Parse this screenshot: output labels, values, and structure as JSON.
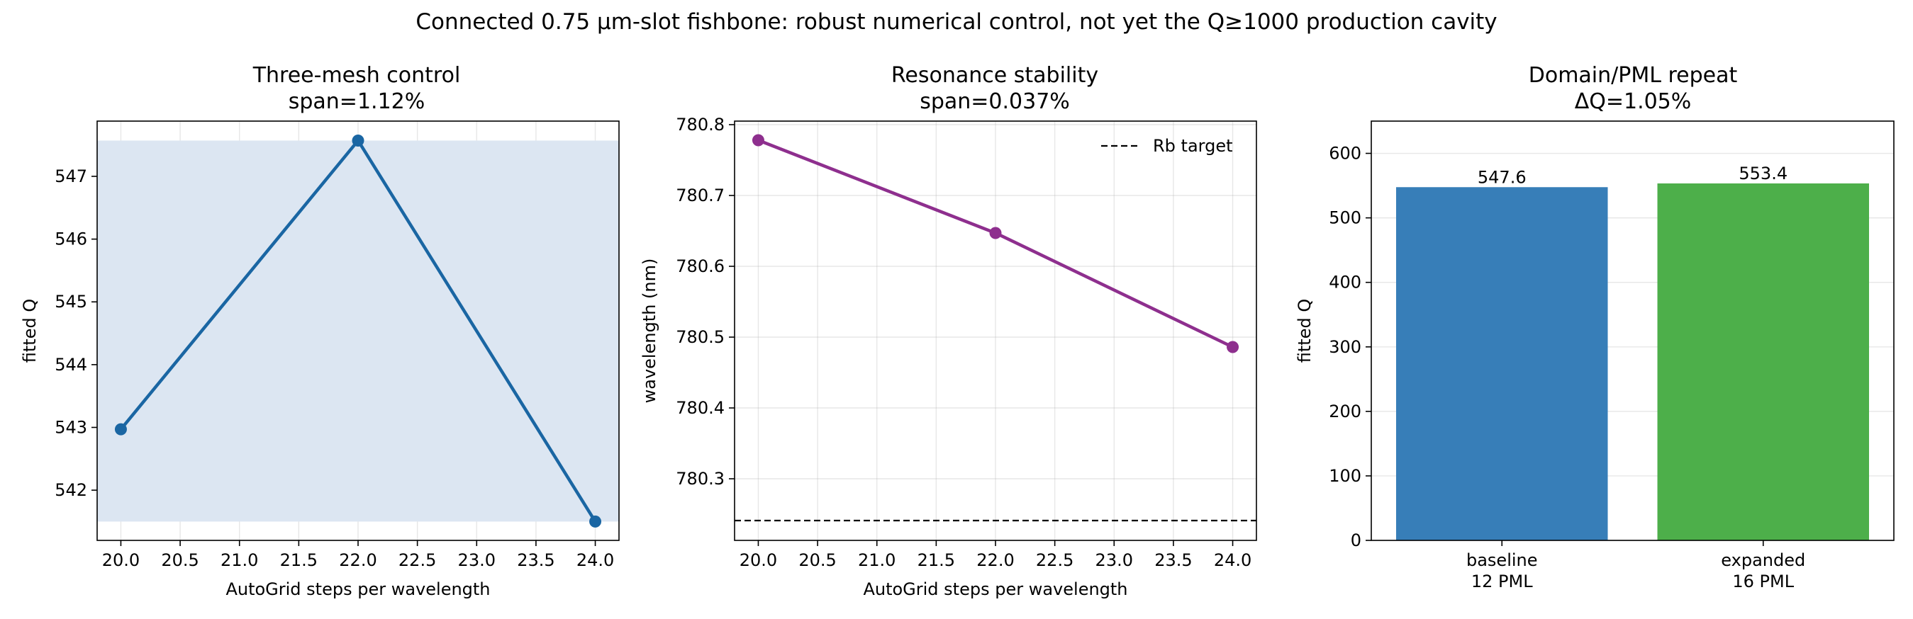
{
  "suptitle": "Connected 0.75 µm-slot fishbone: robust numerical control, not yet the Q≥1000 production cavity",
  "colors": {
    "mesh_line": "#1a66a3",
    "mesh_band": "#dce6f2",
    "resonance_line": "#8e2f8e",
    "target_line": "#000000",
    "bar_baseline": "#377eb8",
    "bar_expanded": "#4daf4a"
  },
  "chart_data": [
    {
      "type": "line",
      "title_line1": "Three-mesh control",
      "title_line2": "span=1.12%",
      "xlabel": "AutoGrid steps per wavelength",
      "ylabel": "fitted Q",
      "x": [
        20,
        22,
        24
      ],
      "y": [
        542.97,
        547.57,
        541.5
      ],
      "band": [
        541.5,
        547.57
      ],
      "xlim": [
        19.8,
        24.2
      ],
      "ylim": [
        541.2,
        547.88
      ],
      "xticks": [
        "20.0",
        "20.5",
        "21.0",
        "21.5",
        "22.0",
        "22.5",
        "23.0",
        "23.5",
        "24.0"
      ],
      "yticks": [
        "542",
        "543",
        "544",
        "545",
        "546",
        "547"
      ],
      "grid": true
    },
    {
      "type": "line",
      "title_line1": "Resonance stability",
      "title_line2": "span=0.037%",
      "xlabel": "AutoGrid steps per wavelength",
      "ylabel": "wavelength (nm)",
      "x": [
        20,
        22,
        24
      ],
      "y": [
        780.778,
        780.647,
        780.486
      ],
      "target": 780.241,
      "legend": "Rb target",
      "legend_position": "top-right",
      "xlim": [
        19.8,
        24.2
      ],
      "ylim": [
        780.213,
        780.805
      ],
      "xticks": [
        "20.0",
        "20.5",
        "21.0",
        "21.5",
        "22.0",
        "22.5",
        "23.0",
        "23.5",
        "24.0"
      ],
      "yticks": [
        "780.3",
        "780.4",
        "780.5",
        "780.6",
        "780.7",
        "780.8"
      ],
      "grid": true
    },
    {
      "type": "bar",
      "title_line1": "Domain/PML repeat",
      "title_line2": "ΔQ=1.05%",
      "xlabel": "",
      "ylabel": "fitted Q",
      "categories": [
        {
          "line1": "baseline",
          "line2": "12 PML"
        },
        {
          "line1": "expanded",
          "line2": "16 PML"
        }
      ],
      "values": [
        547.6,
        553.4
      ],
      "value_labels": [
        "547.6",
        "553.4"
      ],
      "ylim": [
        0,
        650
      ],
      "yticks": [
        "0",
        "100",
        "200",
        "300",
        "400",
        "500",
        "600"
      ],
      "grid": true
    }
  ]
}
